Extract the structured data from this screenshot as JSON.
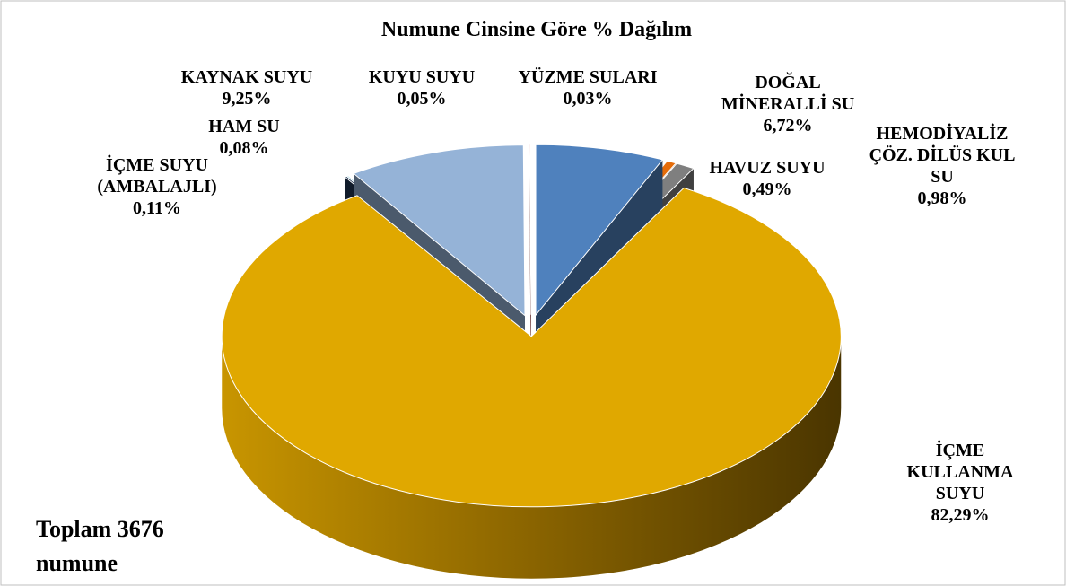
{
  "chart_data": {
    "type": "pie",
    "title": "Numune Cinsine Göre % Dağılım",
    "annotation": "Toplam 3676 numune",
    "categories": [
      "DOĞAL MİNERALLİ SU",
      "HAVUZ SUYU",
      "HEMODİYALİZ ÇÖZ. DİLÜS KUL SU",
      "İÇME KULLANMA SUYU",
      "İÇME SUYU (AMBALAJLI)",
      "HAM SU",
      "KAYNAK SUYU",
      "KUYU SUYU",
      "YÜZME SULARI"
    ],
    "values": [
      6.72,
      0.49,
      0.98,
      82.29,
      0.11,
      0.08,
      9.25,
      0.05,
      0.03
    ],
    "value_labels": [
      "6,72%",
      "0,49%",
      "0,98%",
      "82,29%",
      "0,11%",
      "0,08%",
      "9,25%",
      "0,05%",
      "0,03%"
    ],
    "colors": [
      "#4f81bd",
      "#e46c0a",
      "#7f7f7f",
      "#e0a800",
      "#1f3553",
      "#4bacc6",
      "#95b3d7",
      "#c0504d",
      "#f2dcdb"
    ]
  }
}
